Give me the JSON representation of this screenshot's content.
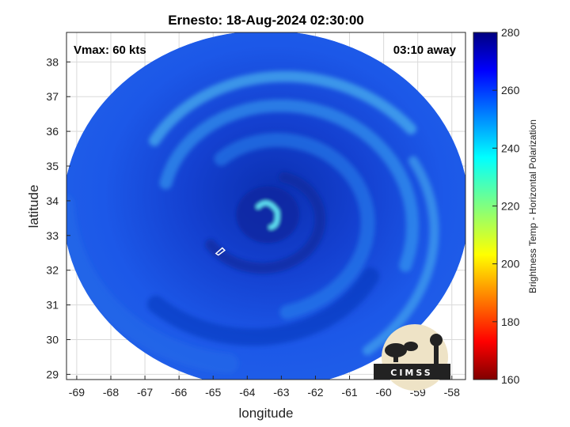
{
  "chart_data": {
    "type": "heatmap",
    "title": "Ernesto: 18-Aug-2024 02:30:00",
    "xlabel": "longitude",
    "ylabel": "latitude",
    "xlim": [
      -69.3,
      -57.6
    ],
    "ylim": [
      28.85,
      38.85
    ],
    "x_ticks": [
      -69,
      -68,
      -67,
      -66,
      -65,
      -64,
      -63,
      -62,
      -61,
      -60,
      -59,
      -58
    ],
    "y_ticks": [
      29,
      30,
      31,
      32,
      33,
      34,
      35,
      36,
      37,
      38
    ],
    "grid": true,
    "annotations": {
      "vmax": "Vmax: 60 kts",
      "time_away": "03:10 away"
    },
    "storm_center": {
      "lon": -63.4,
      "lat": 33.6
    },
    "swath": {
      "center_lon": -63.45,
      "center_lat": 33.75,
      "radius_lon": 5.95,
      "radius_lat": 5.15
    },
    "colorbar": {
      "label": "Brightness Temp - Horizontal Polarization",
      "range": [
        160,
        280
      ],
      "ticks": [
        160,
        180,
        200,
        220,
        240,
        260,
        280
      ],
      "colormap": "jet"
    },
    "logo_text": "CIMSS"
  },
  "colors": {
    "swath_base": "#1c54e6",
    "swath_dark": "#0a2aa8",
    "swath_light": "#3aa0f0",
    "eye_cyan": "#5fe0f0",
    "grid": "#d9d9d9",
    "axis": "#262626"
  }
}
